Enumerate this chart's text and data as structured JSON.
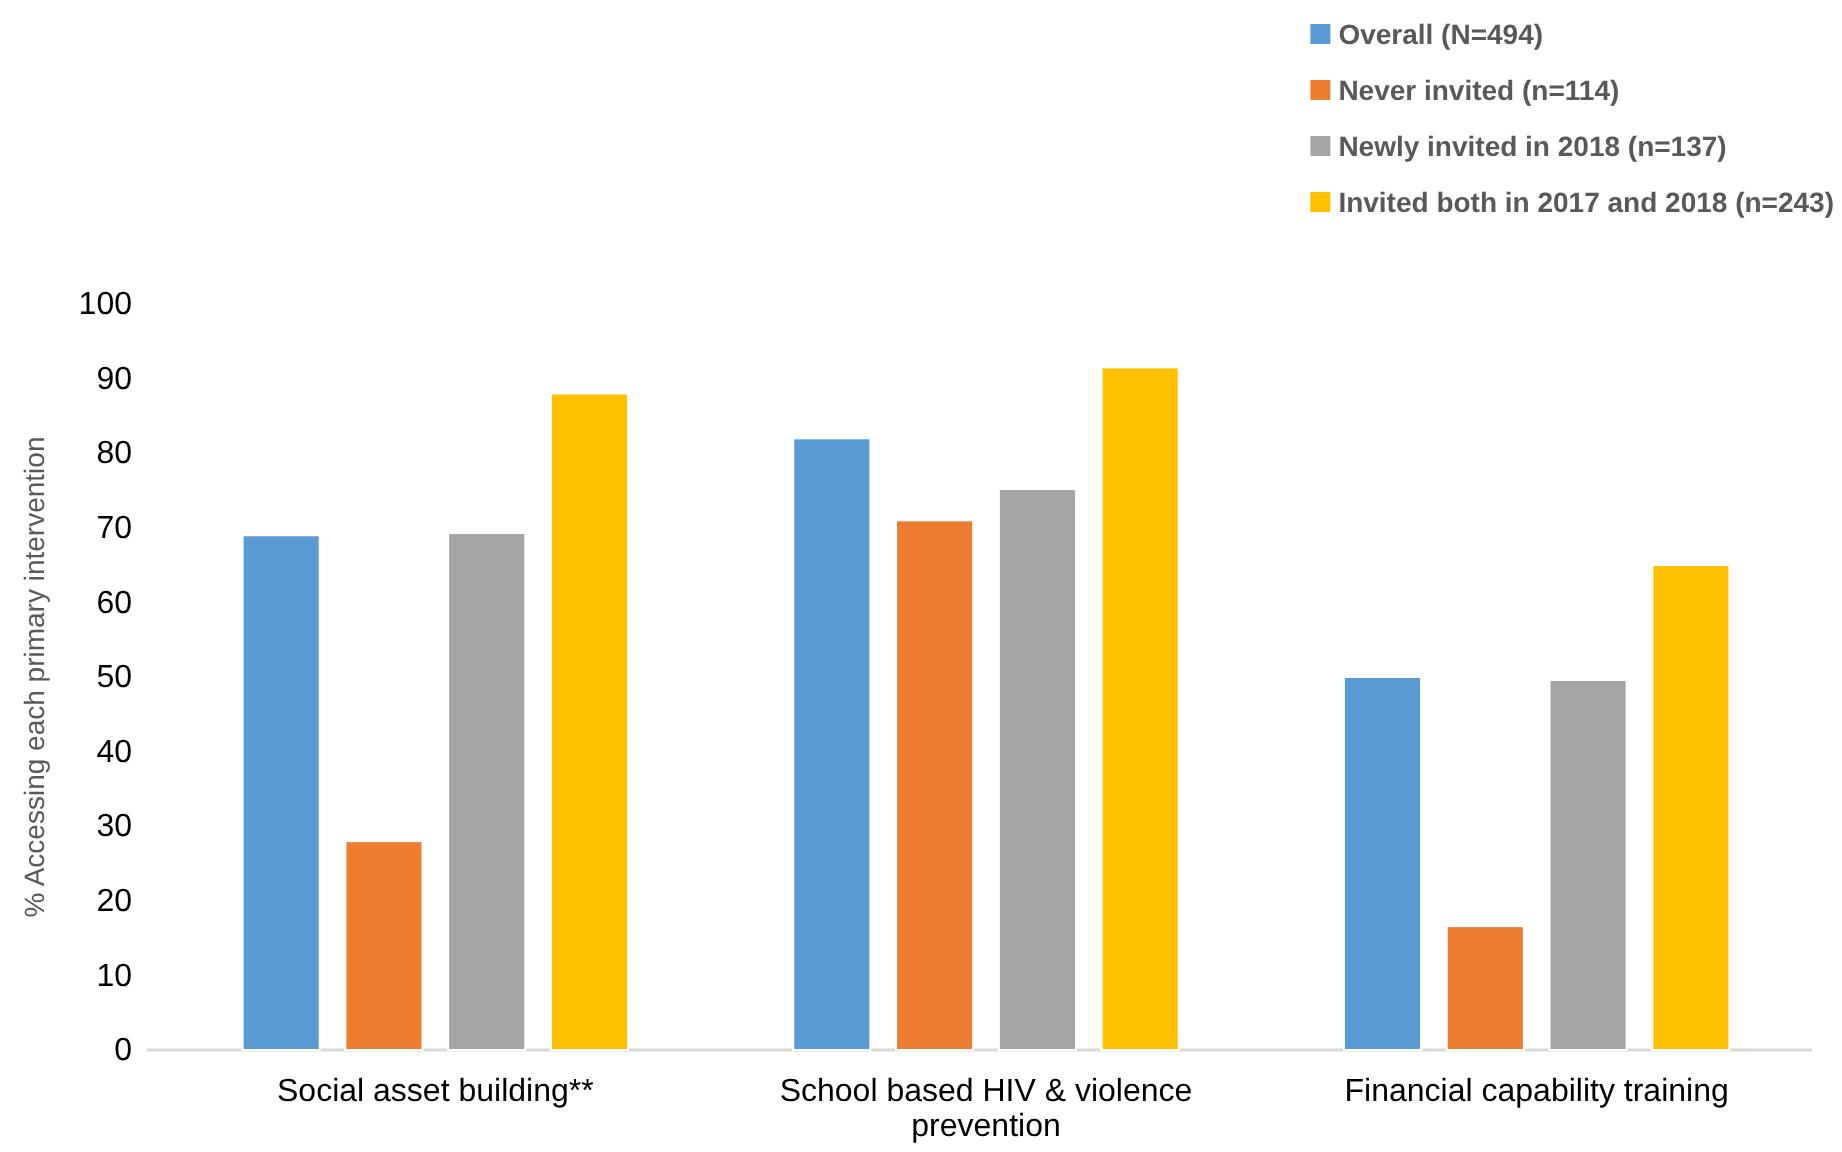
{
  "chart_data": {
    "type": "bar",
    "ylabel": "% Accessing each primary intervention",
    "categories": [
      "Social asset building**",
      "School based HIV & violence prevention",
      "Financial capability training"
    ],
    "series": [
      {
        "name": "Overall (N=494)",
        "color": "#5b9bd5",
        "values": [
          69,
          82,
          50
        ]
      },
      {
        "name": "Never invited (n=114)",
        "color": "#ed7d31",
        "values": [
          28,
          71,
          16.6
        ]
      },
      {
        "name": "Newly invited in 2018 (n=137)",
        "color": "#a5a5a5",
        "values": [
          69.3,
          75.2,
          49.6
        ]
      },
      {
        "name": "Invited both in 2017 and 2018 (n=243)",
        "color": "#ffc000",
        "values": [
          88,
          91.5,
          65
        ]
      }
    ],
    "ylim": [
      0,
      100
    ],
    "yticks": [
      0,
      10,
      20,
      30,
      40,
      50,
      60,
      70,
      80,
      90,
      100
    ],
    "grid": false,
    "legend": "top right"
  }
}
